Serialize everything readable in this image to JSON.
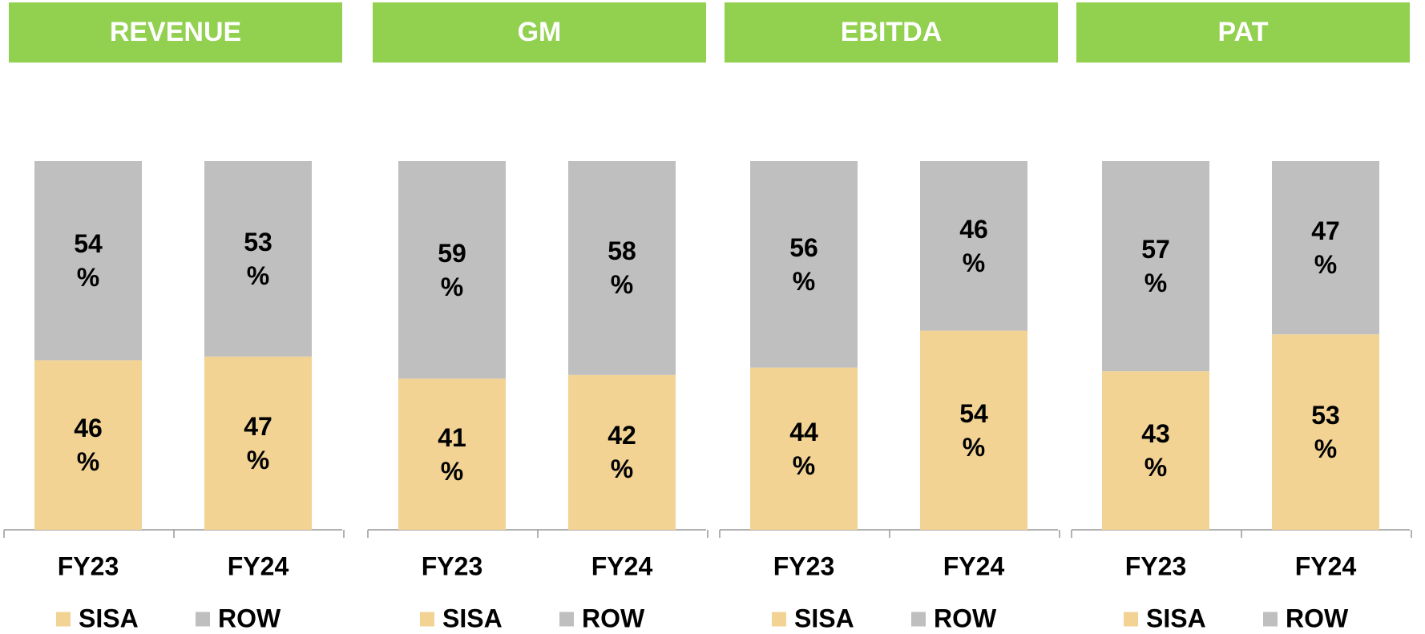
{
  "chart_data": [
    {
      "type": "bar",
      "stacked": true,
      "title": "REVENUE",
      "categories": [
        "FY23",
        "FY24"
      ],
      "ylim": [
        0,
        100
      ],
      "series": [
        {
          "name": "SISA",
          "color": "#f2d394",
          "values": [
            46,
            47
          ],
          "value_labels": [
            "46 %",
            "47 %"
          ]
        },
        {
          "name": "ROW",
          "color": "#bfbfbf",
          "values": [
            54,
            53
          ],
          "value_labels": [
            "54 %",
            "53 %"
          ]
        }
      ]
    },
    {
      "type": "bar",
      "stacked": true,
      "title": "GM",
      "categories": [
        "FY23",
        "FY24"
      ],
      "ylim": [
        0,
        100
      ],
      "series": [
        {
          "name": "SISA",
          "color": "#f2d394",
          "values": [
            41,
            42
          ],
          "value_labels": [
            "41 %",
            "42 %"
          ]
        },
        {
          "name": "ROW",
          "color": "#bfbfbf",
          "values": [
            59,
            58
          ],
          "value_labels": [
            "59 %",
            "58 %"
          ]
        }
      ]
    },
    {
      "type": "bar",
      "stacked": true,
      "title": "EBITDA",
      "categories": [
        "FY23",
        "FY24"
      ],
      "ylim": [
        0,
        100
      ],
      "series": [
        {
          "name": "SISA",
          "color": "#f2d394",
          "values": [
            44,
            54
          ],
          "value_labels": [
            "44 %",
            "54 %"
          ]
        },
        {
          "name": "ROW",
          "color": "#bfbfbf",
          "values": [
            56,
            46
          ],
          "value_labels": [
            "56 %",
            "46 %"
          ]
        }
      ]
    },
    {
      "type": "bar",
      "stacked": true,
      "title": "PAT",
      "categories": [
        "FY23",
        "FY24"
      ],
      "ylim": [
        0,
        100
      ],
      "series": [
        {
          "name": "SISA",
          "color": "#f2d394",
          "values": [
            43,
            53
          ],
          "value_labels": [
            "43 %",
            "53 %"
          ]
        },
        {
          "name": "ROW",
          "color": "#bfbfbf",
          "values": [
            57,
            47
          ],
          "value_labels": [
            "57 %",
            "47 %"
          ]
        }
      ]
    }
  ]
}
